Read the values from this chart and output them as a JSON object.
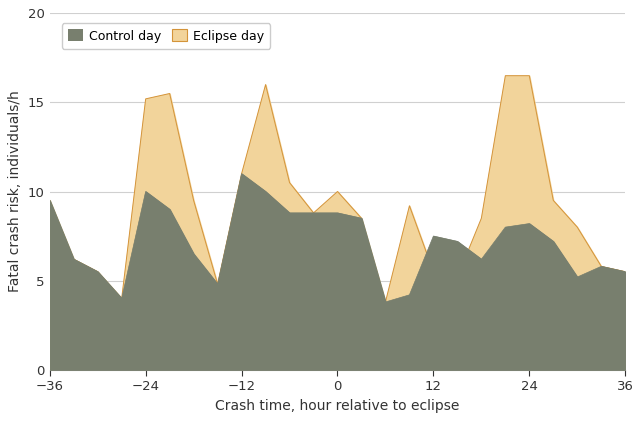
{
  "x": [
    -36,
    -33,
    -30,
    -27,
    -24,
    -21,
    -18,
    -15,
    -12,
    -9,
    -6,
    -3,
    0,
    3,
    6,
    9,
    12,
    15,
    18,
    21,
    24,
    27,
    30,
    33,
    36
  ],
  "control": [
    9.5,
    6.2,
    5.5,
    4.0,
    10.0,
    9.0,
    6.5,
    4.8,
    11.0,
    10.0,
    8.8,
    8.8,
    8.8,
    8.5,
    3.8,
    4.2,
    7.5,
    7.2,
    6.2,
    8.0,
    8.2,
    7.2,
    5.2,
    5.8,
    5.5
  ],
  "eclipse": [
    9.5,
    6.2,
    5.5,
    4.0,
    15.2,
    15.5,
    9.5,
    4.8,
    11.0,
    16.0,
    10.5,
    8.8,
    10.0,
    8.5,
    3.8,
    9.2,
    5.5,
    5.2,
    8.5,
    16.5,
    16.5,
    9.5,
    8.0,
    5.8,
    5.5
  ],
  "control_color": "#787f6e",
  "control_color2": "#5a7080",
  "eclipse_fill_color": "#f2d49b",
  "eclipse_edge_color": "#d4943a",
  "xlabel": "Crash time, hour relative to eclipse",
  "ylabel": "Fatal crash risk, individuals/h",
  "xlim": [
    -36,
    36
  ],
  "ylim": [
    0,
    20
  ],
  "xticks": [
    -36,
    -24,
    -12,
    0,
    12,
    24,
    36
  ],
  "yticks": [
    0,
    5,
    10,
    15,
    20
  ],
  "background_color": "#ffffff",
  "grid_color": "#d0d0d0"
}
